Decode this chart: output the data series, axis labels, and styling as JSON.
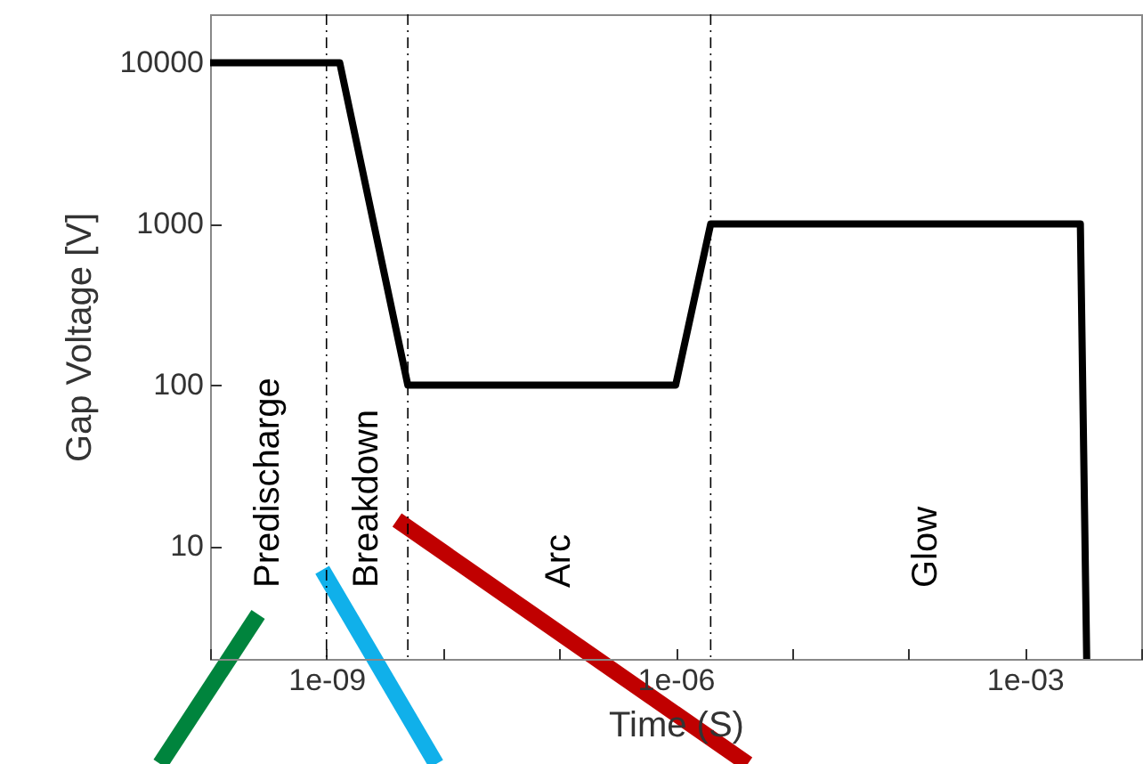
{
  "chart_data": {
    "type": "line",
    "xlabel": "Time (S)",
    "ylabel": "Gap Voltage [V]",
    "log": "xy",
    "x": [
      1e-10,
      1.3e-09,
      5e-09,
      1e-06,
      2e-06,
      0.003,
      0.0034
    ],
    "series": [
      {
        "color": "#000000",
        "values": [
          10000,
          10000,
          100,
          100,
          1000,
          1000,
          2
        ]
      }
    ],
    "xlim": [
      1e-10,
      0.01
    ],
    "xticks": [
      {
        "value": 1e-10,
        "label": null
      },
      {
        "value": 1e-09,
        "label": "1e-09"
      },
      {
        "value": 1e-08,
        "label": null
      },
      {
        "value": 1e-07,
        "label": null
      },
      {
        "value": 1e-06,
        "label": "1e-06"
      },
      {
        "value": 1e-05,
        "label": null
      },
      {
        "value": 0.0001,
        "label": null
      },
      {
        "value": 0.001,
        "label": "1e-03"
      },
      {
        "value": 0.01,
        "label": null
      }
    ],
    "ylim": [
      2,
      20000
    ],
    "yticks": [
      10,
      100,
      1000,
      10000
    ],
    "grid": false,
    "marker": "none",
    "line_style": "solid",
    "ref_lines": [
      {
        "axis": "x",
        "value": 1e-09,
        "color": "#000000",
        "line_style": "dashed"
      },
      {
        "axis": "x",
        "value": 5e-09,
        "color": "#000000",
        "line_style": "dashed"
      },
      {
        "axis": "x",
        "value": 2e-06,
        "color": "#000000",
        "line_style": "dashed"
      }
    ],
    "annotations": [
      "Predischarge",
      "Breakdown",
      "Arc",
      "Glow"
    ]
  }
}
